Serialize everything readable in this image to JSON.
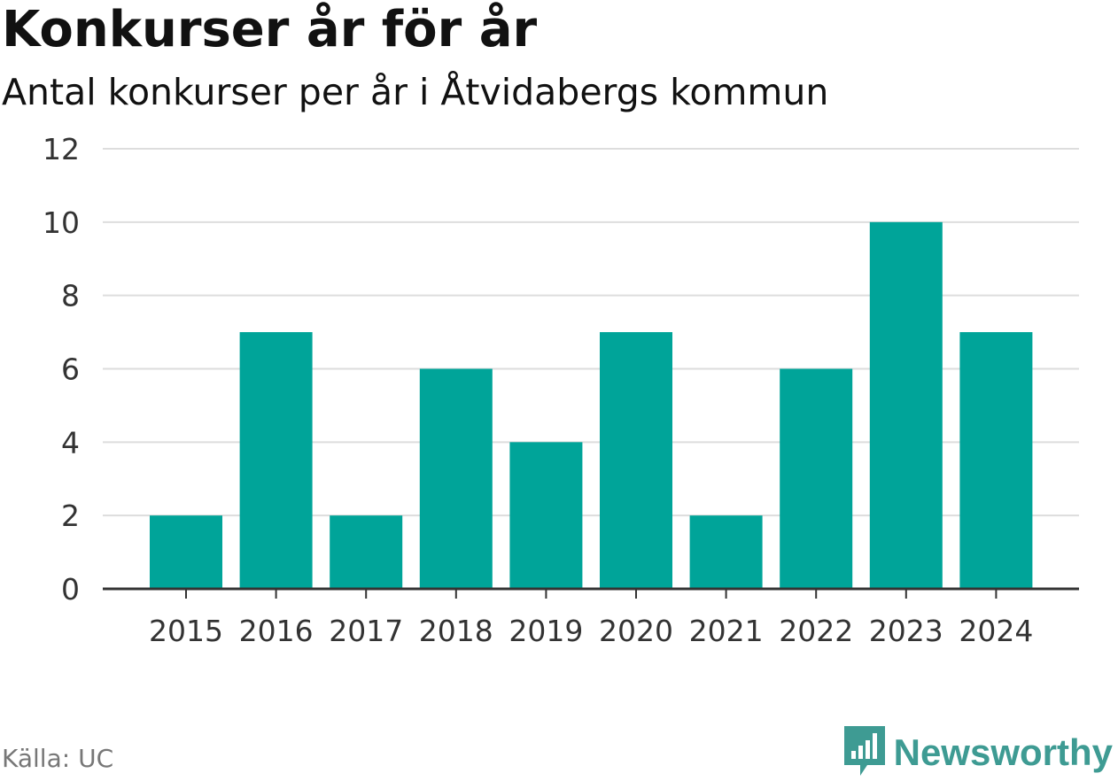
{
  "header": {
    "title": "Konkurser år för år",
    "subtitle": "Antal konkurser per år i Åtvidabergs kommun"
  },
  "footer": {
    "source": "Källa: UC",
    "brand": "Newsworthy",
    "brand_icon": "newsworthy-logo-icon"
  },
  "colors": {
    "bar": "#00a499",
    "grid": "#dddddd",
    "axis": "#333333",
    "brand": "#3e9b93"
  },
  "chart_data": {
    "type": "bar",
    "categories": [
      "2015",
      "2016",
      "2017",
      "2018",
      "2019",
      "2020",
      "2021",
      "2022",
      "2023",
      "2024"
    ],
    "values": [
      2,
      7,
      2,
      6,
      4,
      7,
      2,
      6,
      10,
      7
    ],
    "yticks": [
      "0",
      "2",
      "4",
      "6",
      "8",
      "10",
      "12"
    ],
    "ylim": [
      0,
      12
    ],
    "grid": true,
    "legend": "none"
  }
}
